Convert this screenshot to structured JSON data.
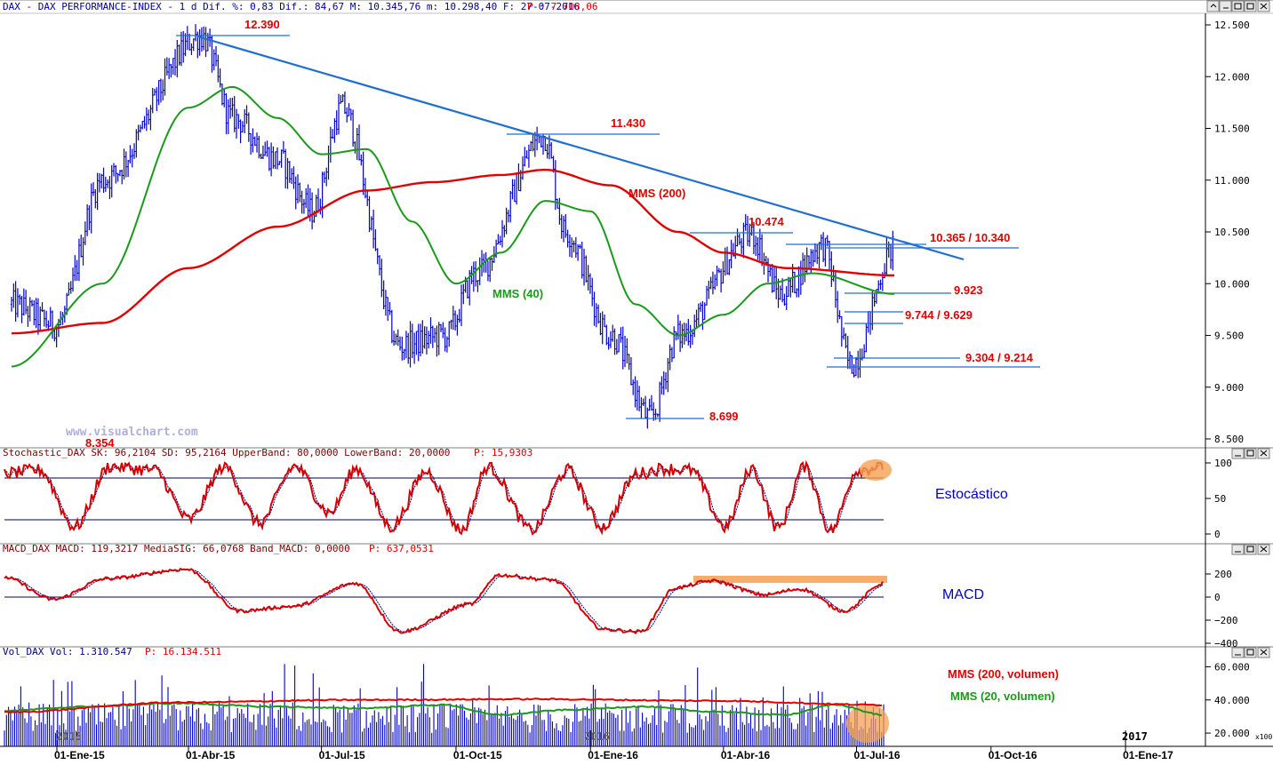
{
  "header": {
    "price": "DAX - DAX PERFORMANCE-INDEX -  1 d Dif. %: 0,83 Dif.: 84,67 M: 10.345,76 m: 10.298,40 F: 27-07-2016",
    "price_p": "P : 7.708,06",
    "stoch": "Stochastic_DAX SK: 96,2104 SD: 95,2164 UpperBand: 80,0000 LowerBand: 20,0000",
    "stoch_p": "P: 15,9303",
    "macd": "MACD_DAX MACD: 119,3217 MediaSIG: 66,0768 Band_MACD: 0,0000",
    "macd_p": "P: 637,0531",
    "vol": "Vol_DAX Vol: 1.310.547",
    "vol_p": "P: 16.134.511"
  },
  "watermark": "www.visualchart.com",
  "year_labels": {
    "y2015": "2015",
    "y2016": "2016",
    "y2017": "2017"
  },
  "x_axis": {
    "labels": [
      "01-Ene-15",
      "01-Abr-15",
      "01-Jul-15",
      "01-Oct-15",
      "01-Ene-16",
      "01-Abr-16",
      "01-Jul-16",
      "01-Oct-16",
      "01-Ene-17"
    ]
  },
  "annotations": {
    "high1": "12.390",
    "high2": "11.430",
    "high3": "10.474",
    "low1": "8.699",
    "low_cut": "8.354",
    "r1": "10.365 / 10.340",
    "r2": "9.923",
    "r3": "9.744 / 9.629",
    "r4": "9.304 / 9.214",
    "mms200": "MMS (200)",
    "mms40": "MMS (40)",
    "estocastico": "Estocástico",
    "macd": "MACD",
    "vol_mms200": "MMS (200, volumen)",
    "vol_mms20": "MMS (20, volumen)",
    "vol_scale": "x100"
  },
  "colors": {
    "price_bars": "#0000c0",
    "mms200": "#e00000",
    "mms40": "#1a9a1a",
    "trendline": "#1f6fd0",
    "stoch_k": "#d40000",
    "stoch_d": "#000080",
    "macd": "#d40000",
    "macd_signal": "#000080",
    "volume": "#0000c0",
    "highlight": "#f5a050"
  },
  "chart_data": [
    {
      "type": "line",
      "title": "DAX - DAX PERFORMANCE-INDEX - 1 d",
      "subtype": "ohlc",
      "y_ticks": [
        "12.500",
        "12.000",
        "11.500",
        "11.000",
        "10.500",
        "10.000",
        "9.500",
        "9.000",
        "8.500"
      ],
      "ylim": [
        8450,
        12600
      ],
      "key_points": [
        {
          "date": "2014-12",
          "close": 9800
        },
        {
          "date": "2015-01-01",
          "close": 9600
        },
        {
          "date": "2015-02",
          "close": 11000
        },
        {
          "date": "2015-04-10",
          "close": 12390
        },
        {
          "date": "2015-05",
          "close": 11600
        },
        {
          "date": "2015-06",
          "close": 11200
        },
        {
          "date": "2015-06-25",
          "close": 10700
        },
        {
          "date": "2015-07-15",
          "close": 11700
        },
        {
          "date": "2015-08-24",
          "close": 9400
        },
        {
          "date": "2015-09-24",
          "close": 9500
        },
        {
          "date": "2015-10-15",
          "close": 10100
        },
        {
          "date": "2015-11-30",
          "close": 11430
        },
        {
          "date": "2015-12-15",
          "close": 10500
        },
        {
          "date": "2016-01-15",
          "close": 9500
        },
        {
          "date": "2016-02-11",
          "close": 8699
        },
        {
          "date": "2016-03-01",
          "close": 9500
        },
        {
          "date": "2016-04-20",
          "close": 10474
        },
        {
          "date": "2016-05-10",
          "close": 9900
        },
        {
          "date": "2016-06-08",
          "close": 10365
        },
        {
          "date": "2016-06-27",
          "close": 9214
        },
        {
          "date": "2016-07-27",
          "close": 10345
        }
      ],
      "mms200_points": [
        {
          "date": "2014-12",
          "value": 9520
        },
        {
          "date": "2015-02",
          "value": 9620
        },
        {
          "date": "2015-04",
          "value": 10150
        },
        {
          "date": "2015-06",
          "value": 10550
        },
        {
          "date": "2015-08",
          "value": 10900
        },
        {
          "date": "2015-09-15",
          "value": 10980
        },
        {
          "date": "2015-11",
          "value": 11050
        },
        {
          "date": "2015-12",
          "value": 11100
        },
        {
          "date": "2016-01-15",
          "value": 10950
        },
        {
          "date": "2016-03",
          "value": 10500
        },
        {
          "date": "2016-04",
          "value": 10300
        },
        {
          "date": "2016-05-15",
          "value": 10150
        },
        {
          "date": "2016-07-27",
          "value": 10080
        }
      ],
      "mms40_points": [
        {
          "date": "2014-12",
          "value": 9200
        },
        {
          "date": "2015-02",
          "value": 10000
        },
        {
          "date": "2015-04",
          "value": 11700
        },
        {
          "date": "2015-05",
          "value": 11900
        },
        {
          "date": "2015-06",
          "value": 11600
        },
        {
          "date": "2015-07",
          "value": 11250
        },
        {
          "date": "2015-08",
          "value": 11300
        },
        {
          "date": "2015-09",
          "value": 10600
        },
        {
          "date": "2015-10",
          "value": 10000
        },
        {
          "date": "2015-11",
          "value": 10300
        },
        {
          "date": "2015-12",
          "value": 10800
        },
        {
          "date": "2016-01",
          "value": 10700
        },
        {
          "date": "2016-02",
          "value": 9800
        },
        {
          "date": "2016-03",
          "value": 9500
        },
        {
          "date": "2016-04",
          "value": 9700
        },
        {
          "date": "2016-05",
          "value": 10000
        },
        {
          "date": "2016-06",
          "value": 10100
        },
        {
          "date": "2016-07-27",
          "value": 9900
        }
      ]
    },
    {
      "type": "line",
      "title": "Stochastic_DAX",
      "y_ticks": [
        "100",
        "50",
        "0"
      ],
      "ylim": [
        -5,
        105
      ],
      "bands": [
        80,
        20
      ],
      "last": {
        "SK": 96.2104,
        "SD": 95.2164
      }
    },
    {
      "type": "line",
      "title": "MACD_DAX",
      "y_ticks": [
        "200",
        "0",
        "−200",
        "−400"
      ],
      "ylim": [
        -420,
        300
      ],
      "last": {
        "MACD": 119.3217,
        "MediaSIG": 66.0768
      }
    },
    {
      "type": "bar",
      "title": "Vol_DAX",
      "y_ticks": [
        "60.000",
        "40.000",
        "20.000"
      ],
      "ylim": [
        15000,
        72000
      ],
      "last": {
        "Vol": 1310547
      }
    }
  ]
}
